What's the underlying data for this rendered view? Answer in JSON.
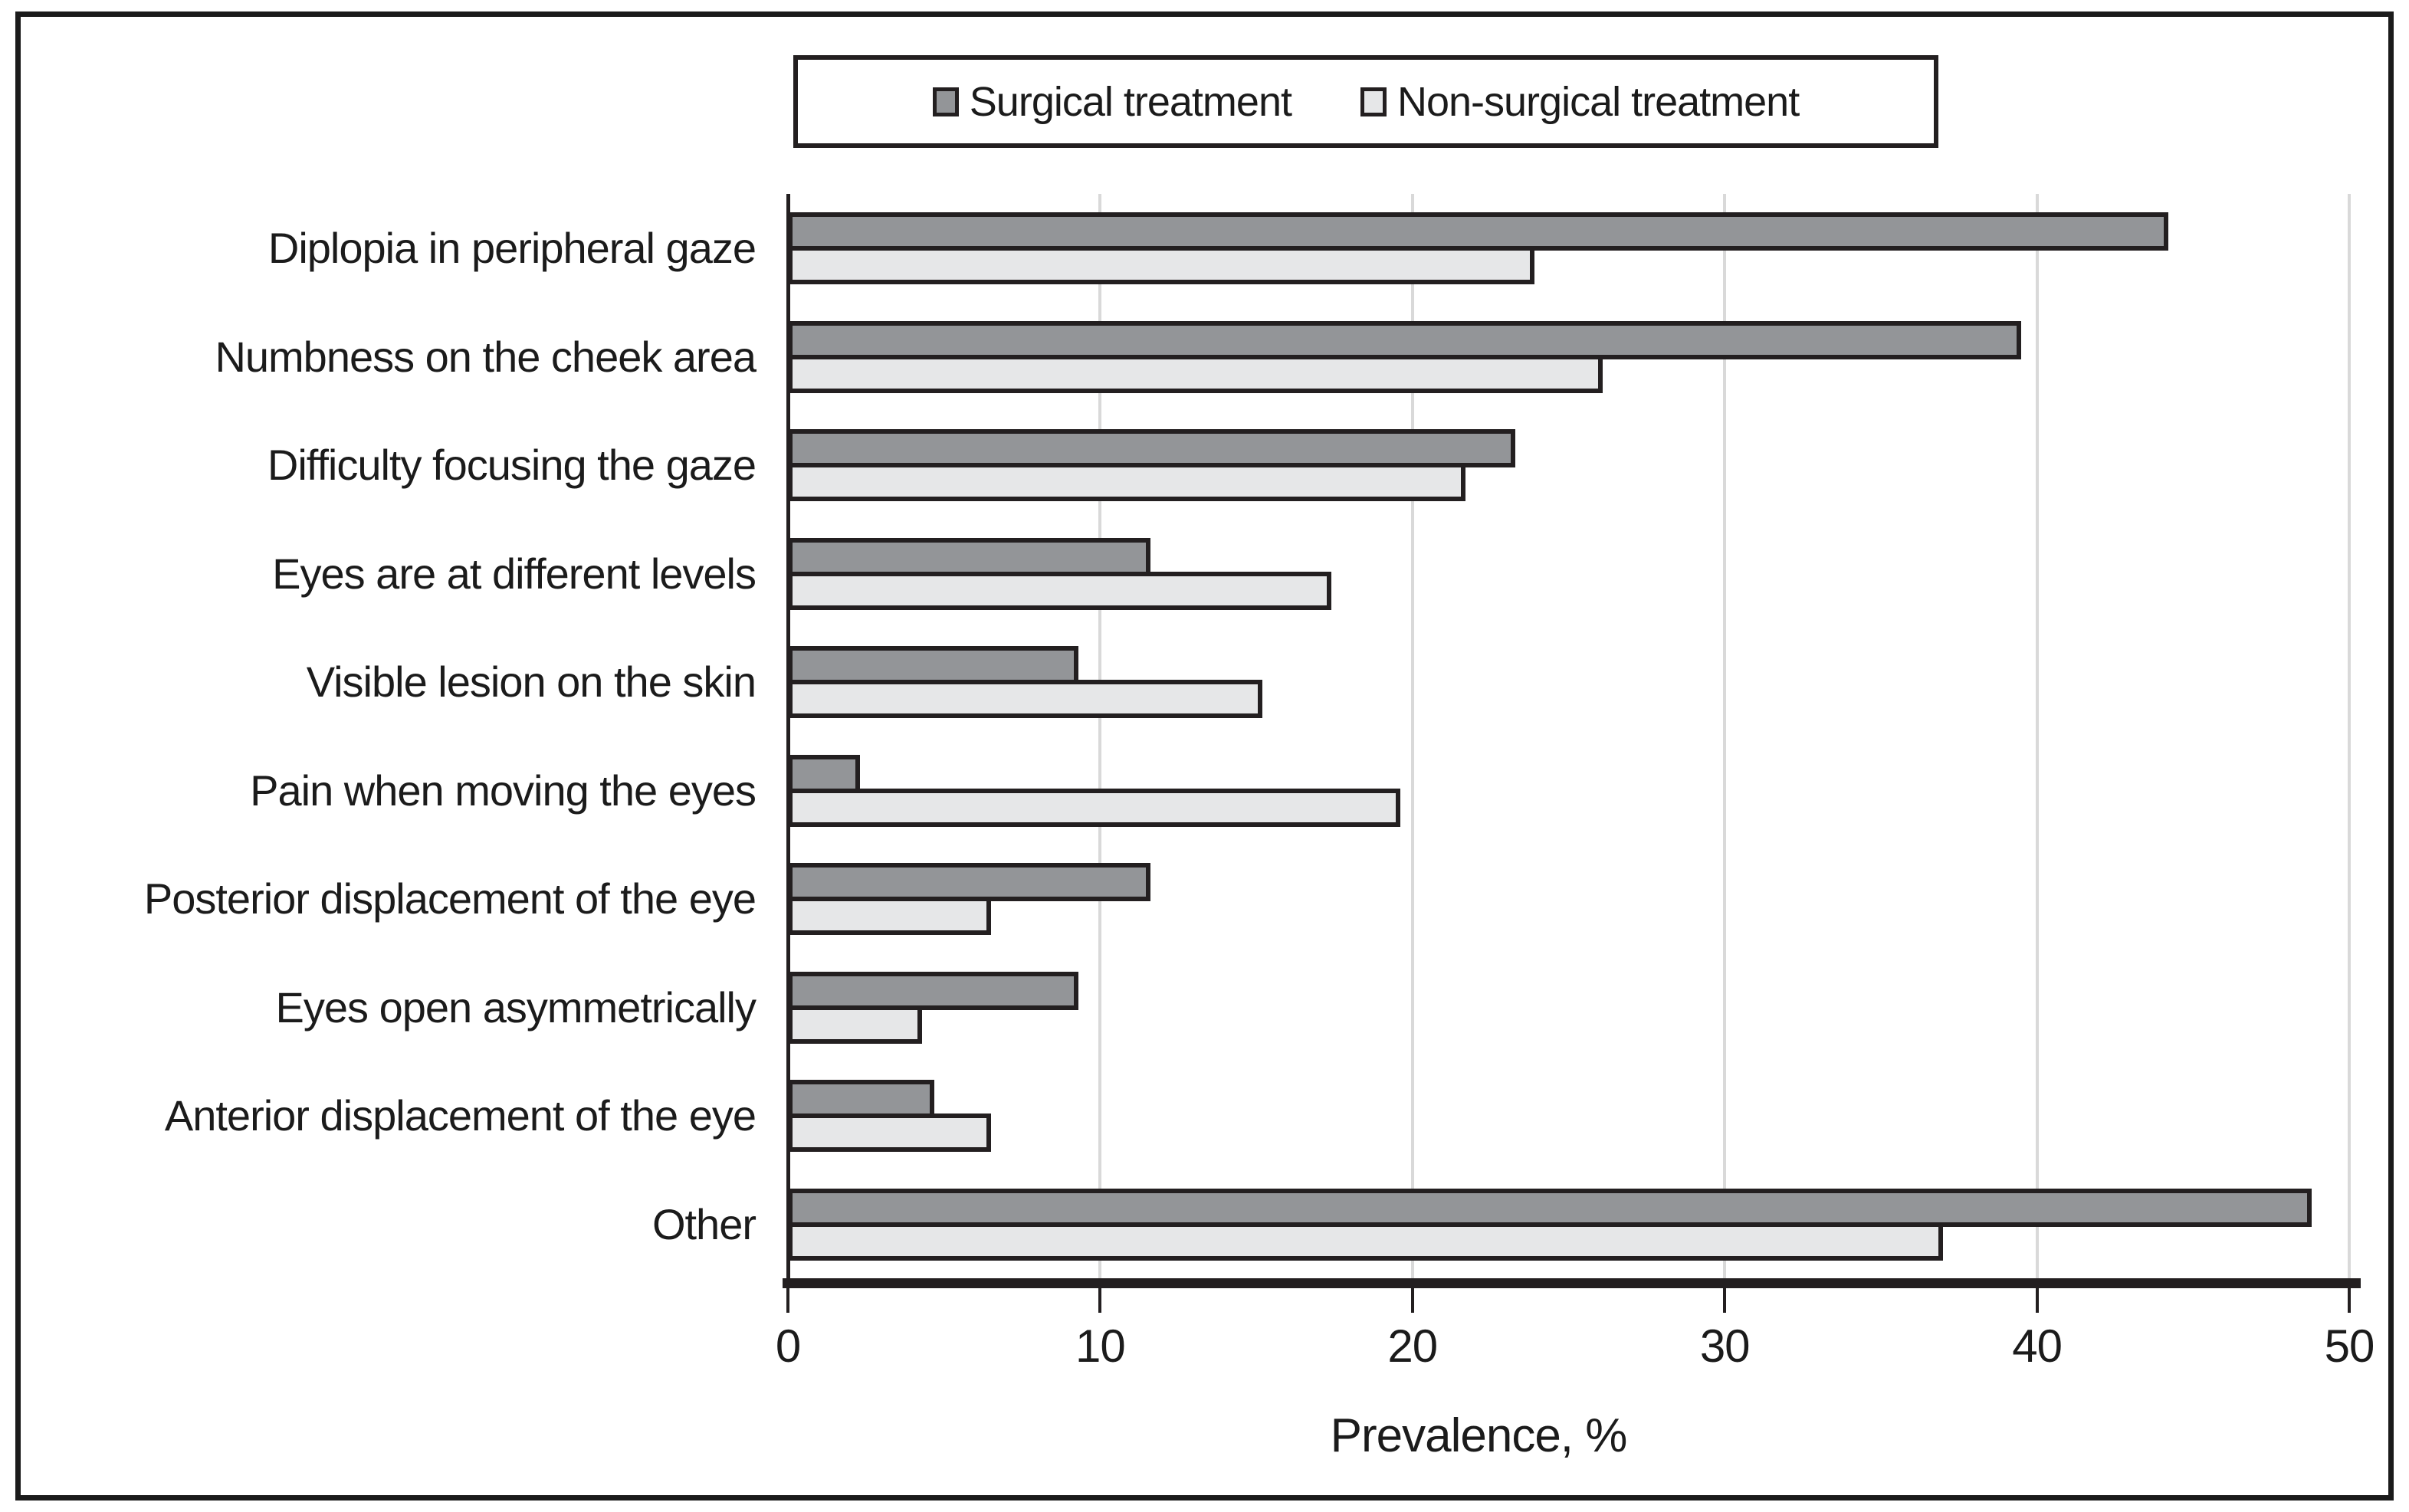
{
  "legend": {
    "items": [
      {
        "label": "Surgical treatment",
        "color": "#939598"
      },
      {
        "label": "Non-surgical treatment",
        "color": "#e6e7e8"
      }
    ]
  },
  "colors": {
    "surgical_bar": "#939598",
    "non_surgical_bar": "#e6e7e8",
    "bar_outline": "#231f20",
    "gridline": "#d9d9d9",
    "axis": "#231f20"
  },
  "chart_data": {
    "type": "bar",
    "orientation": "horizontal",
    "title": "",
    "xlabel": "Prevalence, %",
    "ylabel": "",
    "xlim": [
      0,
      50
    ],
    "xticks": [
      0,
      10,
      20,
      30,
      40,
      50
    ],
    "grid": true,
    "legend_position": "top",
    "categories": [
      "Diplopia in peripheral gaze",
      "Numbness on the cheek area",
      "Difficulty focusing the gaze",
      "Eyes are at different levels",
      "Visible lesion on the skin",
      "Pain when moving the eyes",
      "Posterior displacement of the eye",
      "Eyes open asymmetrically",
      "Anterior displacement of the eye",
      "Other"
    ],
    "series": [
      {
        "name": "Surgical treatment",
        "values": [
          44.2,
          39.5,
          23.3,
          11.6,
          9.3,
          2.3,
          11.6,
          9.3,
          4.7,
          48.8
        ]
      },
      {
        "name": "Non-surgical treatment",
        "values": [
          23.9,
          26.1,
          21.7,
          17.4,
          15.2,
          19.6,
          6.5,
          4.3,
          6.5,
          37.0
        ]
      }
    ]
  }
}
